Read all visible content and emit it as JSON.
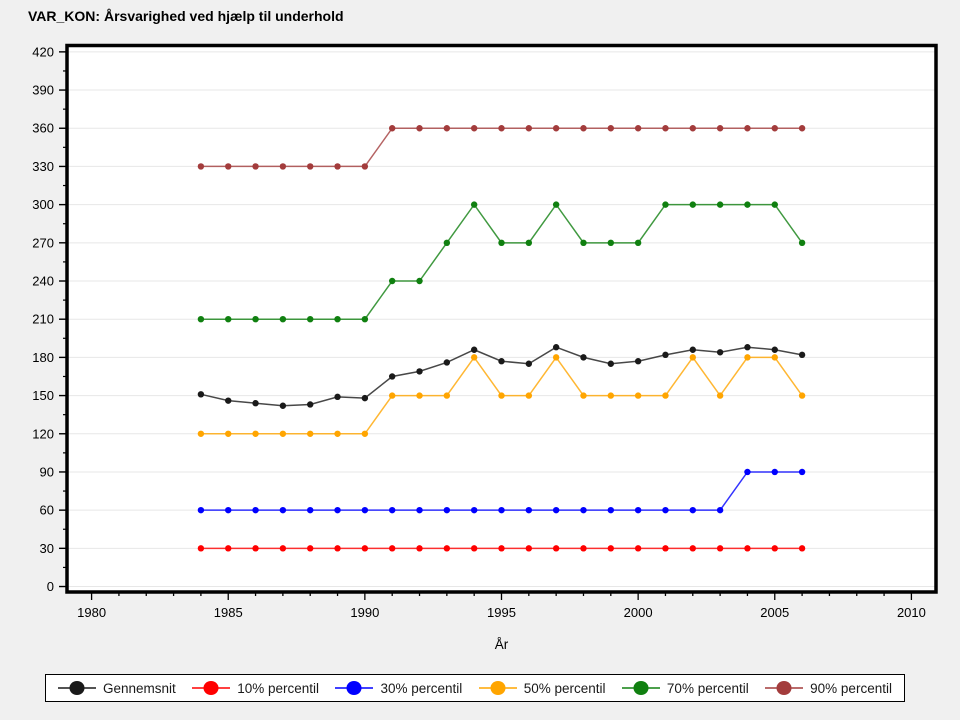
{
  "title": "VAR_KON: Årsvarighed ved hjælp til underhold",
  "colors": {
    "background": "#f0f0f0",
    "plot_background": "#ffffff",
    "grid": "#e7e7e7",
    "frame": "#000000",
    "tick": "#000000"
  },
  "chart_data": {
    "type": "line",
    "title": "VAR_KON: Årsvarighed ved hjælp til underhold",
    "xlabel": "År",
    "ylabel": "",
    "x": [
      1984,
      1985,
      1986,
      1987,
      1988,
      1989,
      1990,
      1991,
      1992,
      1993,
      1994,
      1995,
      1996,
      1997,
      1998,
      1999,
      2000,
      2001,
      2002,
      2003,
      2004,
      2005,
      2006
    ],
    "series": [
      {
        "name": "Gennemsnit",
        "color": "#1a1a1a",
        "values": [
          151,
          146,
          144,
          142,
          143,
          149,
          148,
          165,
          169,
          176,
          186,
          177,
          175,
          188,
          180,
          175,
          177,
          182,
          186,
          184,
          188,
          186,
          182
        ]
      },
      {
        "name": "10% percentil",
        "color": "#ff0000",
        "values": [
          30,
          30,
          30,
          30,
          30,
          30,
          30,
          30,
          30,
          30,
          30,
          30,
          30,
          30,
          30,
          30,
          30,
          30,
          30,
          30,
          30,
          30,
          30
        ]
      },
      {
        "name": "30% percentil",
        "color": "#0000ff",
        "values": [
          60,
          60,
          60,
          60,
          60,
          60,
          60,
          60,
          60,
          60,
          60,
          60,
          60,
          60,
          60,
          60,
          60,
          60,
          60,
          60,
          90,
          90,
          90
        ]
      },
      {
        "name": "50% percentil",
        "color": "#ffa500",
        "values": [
          120,
          120,
          120,
          120,
          120,
          120,
          120,
          150,
          150,
          150,
          180,
          150,
          150,
          180,
          150,
          150,
          150,
          150,
          180,
          150,
          180,
          180,
          150
        ]
      },
      {
        "name": "70% percentil",
        "color": "#108010",
        "values": [
          210,
          210,
          210,
          210,
          210,
          210,
          210,
          240,
          240,
          270,
          300,
          270,
          270,
          300,
          270,
          270,
          270,
          300,
          300,
          300,
          300,
          300,
          270
        ]
      },
      {
        "name": "90% percentil",
        "color": "#a33c3c",
        "values": [
          330,
          330,
          330,
          330,
          330,
          330,
          330,
          360,
          360,
          360,
          360,
          360,
          360,
          360,
          360,
          360,
          360,
          360,
          360,
          360,
          360,
          360,
          360
        ]
      }
    ],
    "xticks": [
      1980,
      1985,
      1990,
      1995,
      2000,
      2005,
      2010
    ],
    "yticks": [
      0,
      30,
      60,
      90,
      120,
      150,
      180,
      210,
      240,
      270,
      300,
      330,
      360,
      390,
      420
    ],
    "x_minor_step": 1,
    "y_minor_step": 15,
    "xlim": [
      1979.1,
      2010.9
    ],
    "ylim": [
      -4.3,
      425.0
    ],
    "grid": "horizontal",
    "legend_position": "bottom"
  }
}
